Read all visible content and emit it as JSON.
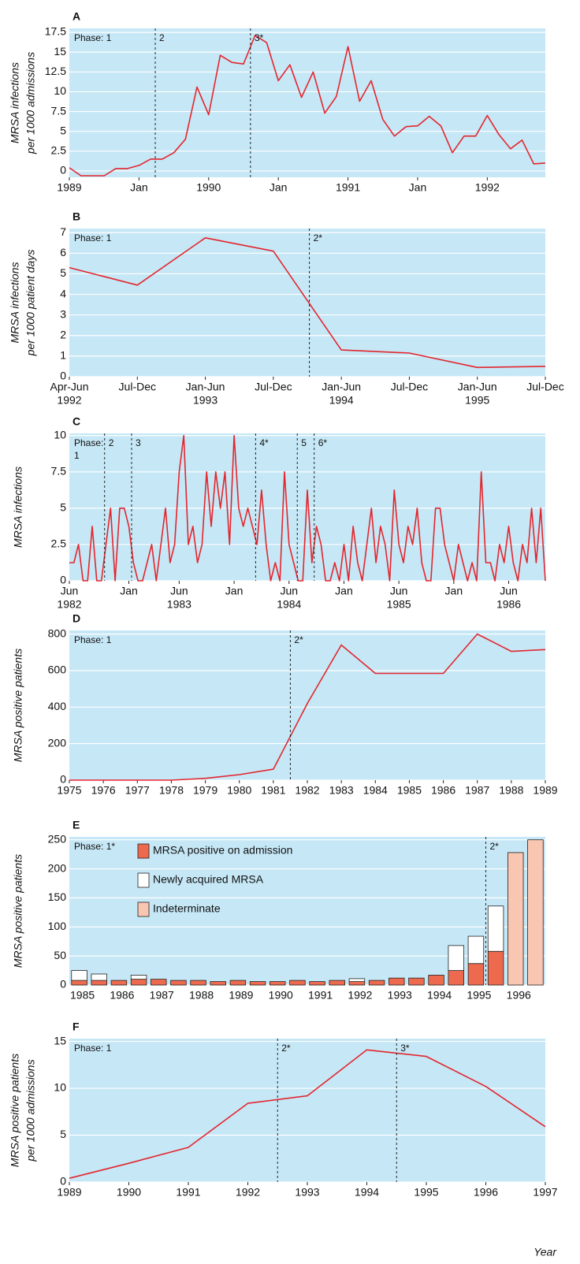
{
  "chart_data": [
    {
      "type": "line",
      "panel": "A",
      "ylabel": [
        "MRSA infections",
        "per 1000 admissions"
      ],
      "color": "#e3262d",
      "grid": true,
      "values": [
        0.4,
        -0.6,
        -0.6,
        -0.6,
        0.3,
        0.3,
        0.7,
        1.5,
        1.5,
        2.3,
        4.0,
        10.6,
        7.1,
        14.6,
        13.7,
        13.5,
        17.1,
        16.2,
        11.4,
        13.4,
        9.3,
        12.5,
        7.3,
        9.4,
        15.7,
        8.8,
        11.4,
        6.5,
        4.4,
        5.6,
        5.7,
        6.9,
        5.7,
        2.3,
        4.4,
        4.4,
        7.0,
        4.6,
        2.8,
        3.9,
        0.9,
        1.0
      ],
      "xlim": [
        0,
        41
      ],
      "xticks": [
        {
          "value": 0,
          "label": "1989"
        },
        {
          "value": 6,
          "label": "Jan"
        },
        {
          "value": 12,
          "label": "1990"
        },
        {
          "value": 18,
          "label": "Jan"
        },
        {
          "value": 24,
          "label": "1991"
        },
        {
          "value": 30,
          "label": "Jan"
        },
        {
          "value": 36,
          "label": "1992"
        }
      ],
      "ylim": [
        -0.8,
        18
      ],
      "yticks": [
        0,
        2.5,
        5,
        7.5,
        10,
        12.5,
        15,
        17.5
      ],
      "phase_start": [
        "Phase: 1"
      ],
      "phases": [
        {
          "x": 7.4,
          "label": "2"
        },
        {
          "x": 15.6,
          "label": "3*"
        }
      ]
    },
    {
      "type": "line",
      "panel": "B",
      "ylabel": [
        "MRSA infections",
        "per 1000 patient days"
      ],
      "color": "#e3262d",
      "grid": true,
      "values": [
        5.3,
        4.45,
        6.75,
        6.1,
        1.3,
        1.15,
        0.45,
        0.5
      ],
      "xlim": [
        0,
        7
      ],
      "xticks": [
        {
          "value": 0,
          "label": "Apr-Jun",
          "sublabel": "1992"
        },
        {
          "value": 1,
          "label": "Jul-Dec"
        },
        {
          "value": 2,
          "label": "Jan-Jun",
          "sublabel": "1993"
        },
        {
          "value": 3,
          "label": "Jul-Dec"
        },
        {
          "value": 4,
          "label": "Jan-Jun",
          "sublabel": "1994"
        },
        {
          "value": 5,
          "label": "Jul-Dec"
        },
        {
          "value": 6,
          "label": "Jan-Jun",
          "sublabel": "1995"
        },
        {
          "value": 7,
          "label": "Jul-Dec"
        }
      ],
      "ylim": [
        0,
        7.2
      ],
      "yticks": [
        0,
        1,
        2,
        3,
        4,
        5,
        6,
        7
      ],
      "phase_start": [
        "Phase: 1"
      ],
      "phases": [
        {
          "x": 3.53,
          "label": "2*"
        }
      ]
    },
    {
      "type": "line",
      "panel": "C",
      "ylabel": [
        "MRSA infections"
      ],
      "color": "#e3262d",
      "grid": true,
      "values": [
        1.25,
        1.25,
        2.5,
        0,
        0,
        3.75,
        0,
        0,
        2.5,
        5,
        0,
        5,
        5,
        3.75,
        1.25,
        0,
        0,
        1.25,
        2.5,
        0,
        2.5,
        5,
        1.25,
        2.5,
        7.5,
        10,
        2.5,
        3.75,
        1.25,
        2.5,
        7.5,
        3.75,
        7.5,
        5,
        7.5,
        2.5,
        10,
        5,
        3.75,
        5,
        3.75,
        2.5,
        6.25,
        2.5,
        0,
        1.25,
        0,
        7.5,
        2.5,
        1.25,
        0,
        0,
        6.25,
        1.25,
        3.75,
        2.5,
        0,
        0,
        1.25,
        0,
        2.5,
        0,
        3.75,
        1.25,
        0,
        2.5,
        5,
        1.25,
        3.75,
        2.5,
        0,
        6.25,
        2.5,
        1.25,
        3.75,
        2.5,
        5,
        1.25,
        0,
        0,
        5,
        5,
        2.5,
        1.25,
        0,
        2.5,
        1.25,
        0,
        1.25,
        0,
        7.5,
        1.25,
        1.25,
        0,
        2.5,
        1.25,
        3.75,
        1.25,
        0,
        2.5,
        1.25,
        5,
        1.25,
        5,
        0
      ],
      "xlim": [
        0,
        104
      ],
      "xticks": [
        {
          "value": 0,
          "label": "Jun",
          "sublabel": "1982"
        },
        {
          "value": 13,
          "label": "Jan"
        },
        {
          "value": 24,
          "label": "Jun",
          "sublabel": "1983"
        },
        {
          "value": 36,
          "label": "Jan"
        },
        {
          "value": 48,
          "label": "Jun",
          "sublabel": "1984"
        },
        {
          "value": 60,
          "label": "Jan"
        },
        {
          "value": 72,
          "label": "Jun",
          "sublabel": "1985"
        },
        {
          "value": 84,
          "label": "Jan"
        },
        {
          "value": 96,
          "label": "Jun",
          "sublabel": "1986"
        }
      ],
      "ylim": [
        0,
        10.15
      ],
      "yticks": [
        0,
        2.5,
        5,
        7.5,
        10
      ],
      "phase_start": [
        "Phase:",
        "1"
      ],
      "phases": [
        {
          "x": 7.7,
          "label": "2"
        },
        {
          "x": 13.6,
          "label": "3"
        },
        {
          "x": 40.7,
          "label": "4*"
        },
        {
          "x": 49.8,
          "label": "5"
        },
        {
          "x": 53.5,
          "label": "6*"
        }
      ]
    },
    {
      "type": "line",
      "panel": "D",
      "ylabel": [
        "MRSA positive patients"
      ],
      "color": "#e3262d",
      "grid": true,
      "x": [
        1975,
        1976,
        1977,
        1978,
        1979,
        1980,
        1981,
        1982,
        1983,
        1984,
        1985,
        1986,
        1987,
        1988,
        1989
      ],
      "values": [
        0,
        0,
        0,
        0,
        10,
        30,
        60,
        420,
        740,
        585,
        585,
        585,
        800,
        705,
        715
      ],
      "xlim": [
        1975,
        1989
      ],
      "xticks": [
        1975,
        1976,
        1977,
        1978,
        1979,
        1980,
        1981,
        1982,
        1983,
        1984,
        1985,
        1986,
        1987,
        1988,
        1989
      ],
      "ylim": [
        0,
        820
      ],
      "yticks": [
        0,
        200,
        400,
        600,
        800
      ],
      "phase_start": [
        "Phase: 1"
      ],
      "phases": [
        {
          "x": 1981.5,
          "label": "2*"
        }
      ]
    },
    {
      "type": "bar",
      "panel": "E",
      "ylabel": [
        "MRSA positive patients"
      ],
      "grid": true,
      "categories": [
        "1985",
        null,
        "1986",
        null,
        "1987",
        null,
        "1988",
        null,
        "1989",
        null,
        "1990",
        null,
        "1991",
        null,
        "1992",
        null,
        "1993",
        null,
        "1994",
        null,
        "1995",
        null,
        "1996",
        null
      ],
      "series": [
        {
          "name": "MRSA positive on admission",
          "color": "#ee6a4e",
          "values": [
            8,
            8,
            8,
            10,
            10,
            8,
            8,
            6,
            8,
            6,
            6,
            8,
            6,
            8,
            6,
            8,
            12,
            12,
            17,
            25,
            37,
            58,
            0,
            0
          ]
        },
        {
          "name": "Newly acquired MRSA",
          "color": "#ffffff",
          "values": [
            17,
            11,
            0,
            7,
            0,
            0,
            0,
            0,
            0,
            0,
            0,
            0,
            0,
            0,
            5,
            0,
            0,
            0,
            0,
            43,
            47,
            78,
            0,
            0
          ]
        },
        {
          "name": "Indeterminate",
          "color": "#f9c6b1",
          "values": [
            0,
            0,
            0,
            0,
            0,
            0,
            0,
            0,
            0,
            0,
            0,
            0,
            0,
            0,
            0,
            0,
            0,
            0,
            0,
            0,
            0,
            0,
            228,
            250
          ]
        }
      ],
      "ylim": [
        0,
        255
      ],
      "yticks": [
        0,
        50,
        100,
        150,
        200,
        250
      ],
      "phase_start": [
        "Phase: 1*"
      ],
      "phases": [
        {
          "x": 20.5,
          "label": "2*"
        }
      ]
    },
    {
      "type": "line",
      "panel": "F",
      "ylabel": [
        "MRSA positive patients",
        "per 1000 admissions"
      ],
      "color": "#e3262d",
      "grid": true,
      "xlabel": "Year",
      "x": [
        1989,
        1990,
        1991,
        1992,
        1993,
        1994,
        1995,
        1996,
        1997
      ],
      "values": [
        0.4,
        2.0,
        3.7,
        8.4,
        9.2,
        14.1,
        13.4,
        10.2,
        5.9
      ],
      "xlim": [
        1989,
        1997
      ],
      "xticks": [
        1989,
        1990,
        1991,
        1992,
        1993,
        1994,
        1995,
        1996,
        1997
      ],
      "ylim": [
        0,
        15.3
      ],
      "yticks": [
        0,
        5,
        10,
        15
      ],
      "phase_start": [
        "Phase: 1"
      ],
      "phases": [
        {
          "x": 1992.5,
          "label": "2*"
        },
        {
          "x": 1994.5,
          "label": "3*"
        }
      ]
    }
  ]
}
